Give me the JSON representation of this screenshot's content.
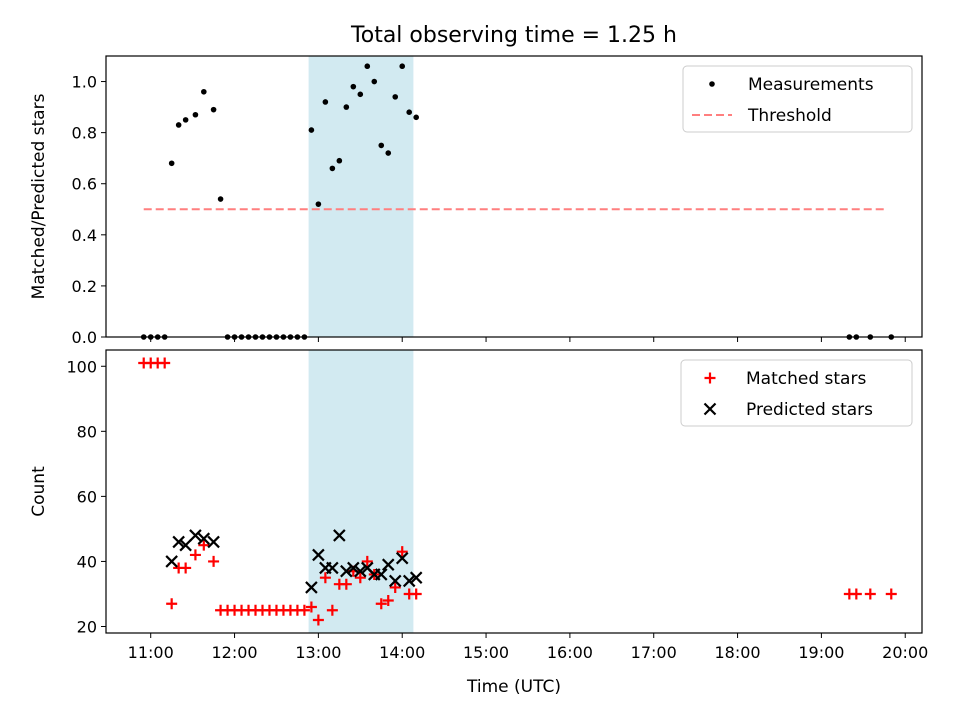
{
  "figure": {
    "title": "Total observing time = 1.25 h",
    "xlabel": "Time (UTC)",
    "highlight_span": [
      "12:53",
      "14:08"
    ],
    "highlight_color": "#add8e6"
  },
  "chart_data": [
    {
      "type": "scatter",
      "ylabel": "Matched/Predicted stars",
      "xlim": [
        "10:28",
        "20:12"
      ],
      "ylim": [
        0,
        1.1
      ],
      "yticks": [
        0.0,
        0.2,
        0.4,
        0.6,
        0.8,
        1.0
      ],
      "ytick_labels": [
        "0.0",
        "0.2",
        "0.4",
        "0.6",
        "0.8",
        "1.0"
      ],
      "legend_position": "top-right",
      "series": [
        {
          "name": "Measurements",
          "marker": "dot",
          "color": "#000000",
          "points": [
            [
              "10:55",
              0.0
            ],
            [
              "11:00",
              0.0
            ],
            [
              "11:05",
              0.0
            ],
            [
              "11:10",
              0.0
            ],
            [
              "11:15",
              0.68
            ],
            [
              "11:20",
              0.83
            ],
            [
              "11:25",
              0.85
            ],
            [
              "11:32",
              0.87
            ],
            [
              "11:38",
              0.96
            ],
            [
              "11:45",
              0.89
            ],
            [
              "11:50",
              0.54
            ],
            [
              "11:55",
              0.0
            ],
            [
              "12:00",
              0.0
            ],
            [
              "12:05",
              0.0
            ],
            [
              "12:10",
              0.0
            ],
            [
              "12:15",
              0.0
            ],
            [
              "12:20",
              0.0
            ],
            [
              "12:25",
              0.0
            ],
            [
              "12:30",
              0.0
            ],
            [
              "12:35",
              0.0
            ],
            [
              "12:40",
              0.0
            ],
            [
              "12:45",
              0.0
            ],
            [
              "12:50",
              0.0
            ],
            [
              "12:55",
              0.81
            ],
            [
              "13:00",
              0.52
            ],
            [
              "13:05",
              0.92
            ],
            [
              "13:10",
              0.66
            ],
            [
              "13:15",
              0.69
            ],
            [
              "13:20",
              0.9
            ],
            [
              "13:25",
              0.98
            ],
            [
              "13:30",
              0.95
            ],
            [
              "13:35",
              1.06
            ],
            [
              "13:40",
              1.0
            ],
            [
              "13:45",
              0.75
            ],
            [
              "13:50",
              0.72
            ],
            [
              "13:55",
              0.94
            ],
            [
              "14:00",
              1.06
            ],
            [
              "14:05",
              0.88
            ],
            [
              "14:10",
              0.86
            ],
            [
              "19:20",
              0.0
            ],
            [
              "19:25",
              0.0
            ],
            [
              "19:35",
              0.0
            ],
            [
              "19:50",
              0.0
            ]
          ]
        },
        {
          "name": "Threshold",
          "marker": "dashed-line",
          "color": "#ff7f7f",
          "points": [
            [
              "10:55",
              0.5
            ],
            [
              "19:45",
              0.5
            ]
          ]
        }
      ]
    },
    {
      "type": "scatter",
      "ylabel": "Count",
      "xlim": [
        "10:28",
        "20:12"
      ],
      "ylim": [
        18,
        105
      ],
      "yticks": [
        20,
        40,
        60,
        80,
        100
      ],
      "ytick_labels": [
        "20",
        "40",
        "60",
        "80",
        "100"
      ],
      "xticks": [
        "11:00",
        "12:00",
        "13:00",
        "14:00",
        "15:00",
        "16:00",
        "17:00",
        "18:00",
        "19:00",
        "20:00"
      ],
      "xtick_labels": [
        "11:00",
        "12:00",
        "13:00",
        "14:00",
        "15:00",
        "16:00",
        "17:00",
        "18:00",
        "19:00",
        "20:00"
      ],
      "legend_position": "top-right",
      "series": [
        {
          "name": "Matched stars",
          "marker": "plus",
          "color": "#ff0000",
          "points": [
            [
              "10:55",
              101
            ],
            [
              "11:00",
              101
            ],
            [
              "11:05",
              101
            ],
            [
              "11:10",
              101
            ],
            [
              "11:15",
              27
            ],
            [
              "11:20",
              38
            ],
            [
              "11:25",
              38
            ],
            [
              "11:32",
              42
            ],
            [
              "11:38",
              45
            ],
            [
              "11:45",
              40
            ],
            [
              "11:50",
              25
            ],
            [
              "11:55",
              25
            ],
            [
              "12:00",
              25
            ],
            [
              "12:05",
              25
            ],
            [
              "12:10",
              25
            ],
            [
              "12:15",
              25
            ],
            [
              "12:20",
              25
            ],
            [
              "12:25",
              25
            ],
            [
              "12:30",
              25
            ],
            [
              "12:35",
              25
            ],
            [
              "12:40",
              25
            ],
            [
              "12:45",
              25
            ],
            [
              "12:50",
              25
            ],
            [
              "12:55",
              26
            ],
            [
              "13:00",
              22
            ],
            [
              "13:05",
              35
            ],
            [
              "13:10",
              25
            ],
            [
              "13:15",
              33
            ],
            [
              "13:20",
              33
            ],
            [
              "13:25",
              37
            ],
            [
              "13:30",
              35
            ],
            [
              "13:35",
              40
            ],
            [
              "13:40",
              36
            ],
            [
              "13:45",
              27
            ],
            [
              "13:50",
              28
            ],
            [
              "13:55",
              32
            ],
            [
              "14:00",
              43
            ],
            [
              "14:05",
              30
            ],
            [
              "14:10",
              30
            ],
            [
              "19:20",
              30
            ],
            [
              "19:25",
              30
            ],
            [
              "19:35",
              30
            ],
            [
              "19:50",
              30
            ]
          ]
        },
        {
          "name": "Predicted stars",
          "marker": "x",
          "color": "#000000",
          "points": [
            [
              "11:15",
              40
            ],
            [
              "11:20",
              46
            ],
            [
              "11:25",
              45
            ],
            [
              "11:32",
              48
            ],
            [
              "11:38",
              47
            ],
            [
              "11:45",
              46
            ],
            [
              "12:55",
              32
            ],
            [
              "13:00",
              42
            ],
            [
              "13:05",
              38
            ],
            [
              "13:10",
              38
            ],
            [
              "13:15",
              48
            ],
            [
              "13:20",
              37
            ],
            [
              "13:25",
              38
            ],
            [
              "13:30",
              37
            ],
            [
              "13:35",
              38
            ],
            [
              "13:40",
              36
            ],
            [
              "13:45",
              36
            ],
            [
              "13:50",
              39
            ],
            [
              "13:55",
              34
            ],
            [
              "14:00",
              41
            ],
            [
              "14:05",
              34
            ],
            [
              "14:10",
              35
            ]
          ]
        }
      ]
    }
  ]
}
